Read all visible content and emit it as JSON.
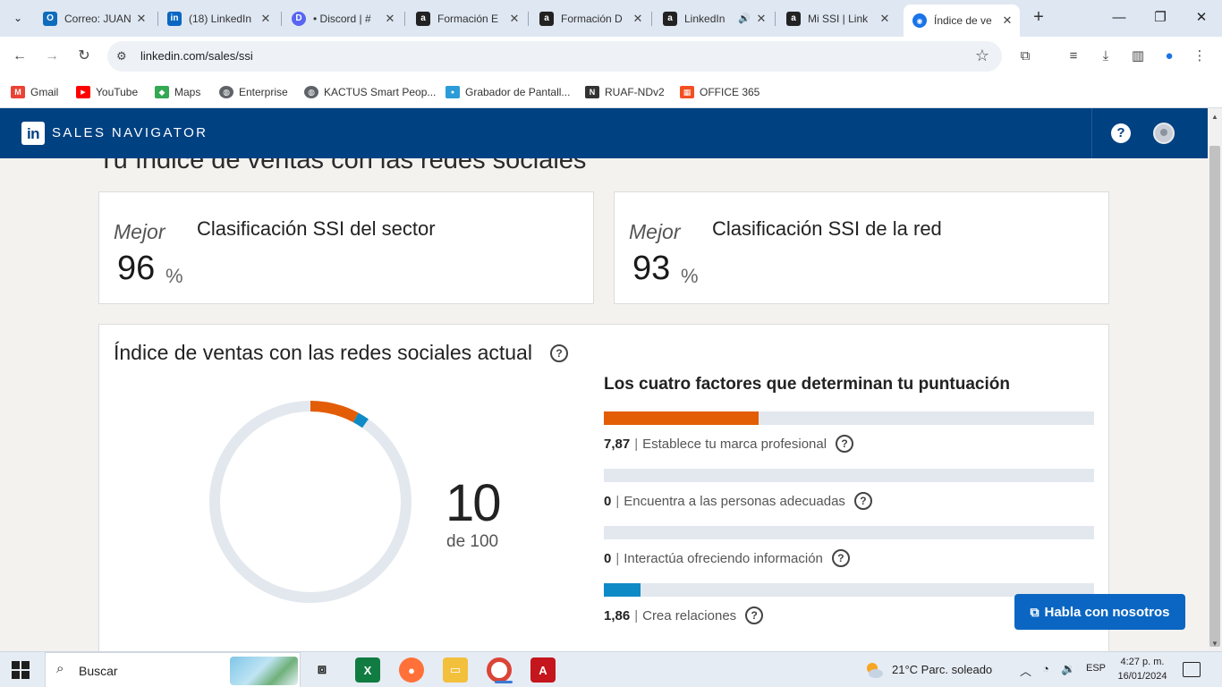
{
  "browser": {
    "tabs": [
      {
        "title": "Correo: JUAN",
        "icon": "outlook-icon",
        "color": "#0f6cbd",
        "glyph": "O"
      },
      {
        "title": "(18) LinkedIn",
        "icon": "linkedin-icon",
        "color": "#0a66c2",
        "glyph": "in"
      },
      {
        "title": "• Discord | #",
        "icon": "discord-icon",
        "color": "#5865f2",
        "glyph": "D"
      },
      {
        "title": "Formación E",
        "icon": "a-letter-icon",
        "color": "#222222",
        "glyph": "a"
      },
      {
        "title": "Formación D",
        "icon": "a-letter-icon",
        "color": "#222222",
        "glyph": "a"
      },
      {
        "title": "LinkedIn",
        "icon": "a-letter-icon",
        "color": "#222222",
        "glyph": "a"
      },
      {
        "title": "Mi SSI | Link",
        "icon": "a-letter-icon",
        "color": "#222222",
        "glyph": "a"
      },
      {
        "title": "Índice de ve",
        "icon": "compass-icon",
        "color": "#1a73e8",
        "glyph": "◉"
      }
    ],
    "url": "linkedin.com/sales/ssi",
    "bookmarks": [
      {
        "label": "Gmail",
        "icon": "gmail-icon",
        "color": "#ea4335",
        "glyph": "M"
      },
      {
        "label": "YouTube",
        "icon": "youtube-icon",
        "color": "#ff0000",
        "glyph": "▶"
      },
      {
        "label": "Maps",
        "icon": "maps-icon",
        "color": "#34a853",
        "glyph": "◆"
      },
      {
        "label": "Enterprise",
        "icon": "globe-icon",
        "color": "#5f6368",
        "glyph": "◍"
      },
      {
        "label": "KACTUS Smart Peop...",
        "icon": "globe-icon",
        "color": "#5f6368",
        "glyph": "◍"
      },
      {
        "label": "Grabador de Pantall...",
        "icon": "recorder-icon",
        "color": "#2b9cd8",
        "glyph": "●"
      },
      {
        "label": "RUAF-NDv2",
        "icon": "ruaf-icon",
        "color": "#333333",
        "glyph": "N"
      },
      {
        "label": "OFFICE 365",
        "icon": "office-icon",
        "color": "#f25022",
        "glyph": "▦"
      }
    ]
  },
  "header": {
    "logo_text": "in",
    "product": "SALES NAVIGATOR",
    "help_glyph": "?"
  },
  "page": {
    "heading": "Tu índice de ventas con las redes sociales",
    "sector_card": {
      "label": "Mejor",
      "title": "Clasificación SSI del sector",
      "value": "96",
      "unit": "%"
    },
    "network_card": {
      "label": "Mejor",
      "title": "Clasificación SSI de la red",
      "value": "93",
      "unit": "%"
    },
    "current": {
      "title": "Índice de ventas con las redes sociales actual",
      "score": "10",
      "score_of": "de 100",
      "score_value": 9.73,
      "score_max": 100,
      "factors_title": "Los cuatro factores que determinan tu puntuación",
      "factor_max": 25,
      "factors": [
        {
          "value_label": "7,87",
          "value": 7.87,
          "label": "Establece tu marca profesional",
          "color": "#e35d06"
        },
        {
          "value_label": "0",
          "value": 0,
          "label": "Encuentra a las personas adecuadas",
          "color": "#e35d06"
        },
        {
          "value_label": "0",
          "value": 0,
          "label": "Interactúa ofreciendo información",
          "color": "#e35d06"
        },
        {
          "value_label": "1,86",
          "value": 1.86,
          "label": "Crea relaciones",
          "color": "#0e8ac7"
        }
      ]
    },
    "chat_button": "Habla con nosotros"
  },
  "taskbar": {
    "search_label": "Buscar",
    "weather": "21°C  Parc. soleado",
    "language": "ESP",
    "time": "4:27 p. m.",
    "date": "16/01/2024"
  },
  "colors": {
    "brand_blue": "#004182",
    "accent_orange": "#e35d06",
    "accent_blue": "#0e8ac7",
    "track_gray": "#e2e8ee"
  }
}
